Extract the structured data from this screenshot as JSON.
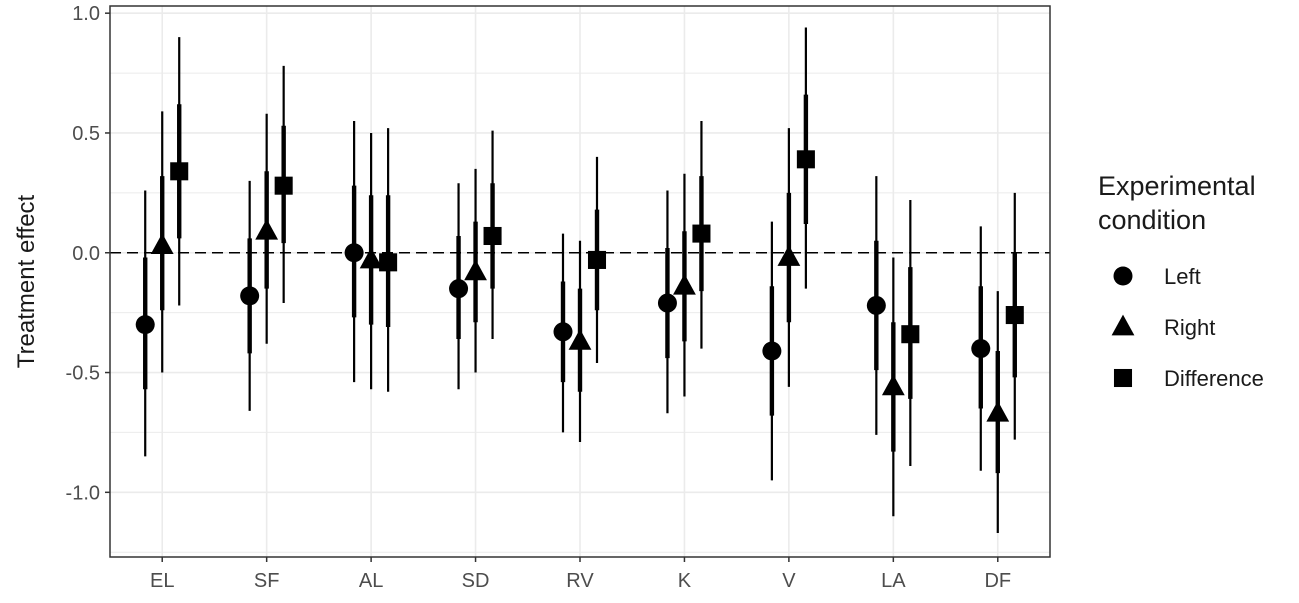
{
  "chart_data": {
    "type": "pointrange",
    "ylabel": "Treatment effect",
    "ylim": [
      -1.27,
      1.03
    ],
    "y_ticks": [
      1.0,
      0.5,
      0.0,
      -0.5,
      -1.0
    ],
    "y_tick_labels": [
      "1.0",
      "0.5",
      "0.0",
      "-0.5",
      "-1.0"
    ],
    "reference_line": 0,
    "grid": true,
    "categories": [
      "EL",
      "SF",
      "AL",
      "SD",
      "RV",
      "K",
      "V",
      "LA",
      "DF"
    ],
    "legend": {
      "title_lines": [
        "Experimental",
        "condition"
      ],
      "position": "right"
    },
    "series": [
      {
        "name": "Left",
        "shape": "circle",
        "values": [
          {
            "est": -0.3,
            "lo90": -0.57,
            "hi90": -0.02,
            "lo95": -0.85,
            "hi95": 0.26
          },
          {
            "est": -0.18,
            "lo90": -0.42,
            "hi90": 0.06,
            "lo95": -0.66,
            "hi95": 0.3
          },
          {
            "est": 0.0,
            "lo90": -0.27,
            "hi90": 0.28,
            "lo95": -0.54,
            "hi95": 0.55
          },
          {
            "est": -0.15,
            "lo90": -0.36,
            "hi90": 0.07,
            "lo95": -0.57,
            "hi95": 0.29
          },
          {
            "est": -0.33,
            "lo90": -0.54,
            "hi90": -0.12,
            "lo95": -0.75,
            "hi95": 0.08
          },
          {
            "est": -0.21,
            "lo90": -0.44,
            "hi90": 0.02,
            "lo95": -0.67,
            "hi95": 0.26
          },
          {
            "est": -0.41,
            "lo90": -0.68,
            "hi90": -0.14,
            "lo95": -0.95,
            "hi95": 0.13
          },
          {
            "est": -0.22,
            "lo90": -0.49,
            "hi90": 0.05,
            "lo95": -0.76,
            "hi95": 0.32
          },
          {
            "est": -0.4,
            "lo90": -0.65,
            "hi90": -0.14,
            "lo95": -0.91,
            "hi95": 0.11
          }
        ]
      },
      {
        "name": "Right",
        "shape": "triangle",
        "values": [
          {
            "est": 0.03,
            "lo90": -0.24,
            "hi90": 0.32,
            "lo95": -0.5,
            "hi95": 0.59
          },
          {
            "est": 0.09,
            "lo90": -0.15,
            "hi90": 0.34,
            "lo95": -0.38,
            "hi95": 0.58
          },
          {
            "est": -0.03,
            "lo90": -0.3,
            "hi90": 0.24,
            "lo95": -0.57,
            "hi95": 0.5
          },
          {
            "est": -0.08,
            "lo90": -0.29,
            "hi90": 0.13,
            "lo95": -0.5,
            "hi95": 0.35
          },
          {
            "est": -0.37,
            "lo90": -0.58,
            "hi90": -0.15,
            "lo95": -0.79,
            "hi95": 0.05
          },
          {
            "est": -0.14,
            "lo90": -0.37,
            "hi90": 0.09,
            "lo95": -0.6,
            "hi95": 0.33
          },
          {
            "est": -0.02,
            "lo90": -0.29,
            "hi90": 0.25,
            "lo95": -0.56,
            "hi95": 0.52
          },
          {
            "est": -0.56,
            "lo90": -0.83,
            "hi90": -0.29,
            "lo95": -1.1,
            "hi95": -0.02
          },
          {
            "est": -0.67,
            "lo90": -0.92,
            "hi90": -0.41,
            "lo95": -1.17,
            "hi95": -0.16
          }
        ]
      },
      {
        "name": "Difference",
        "shape": "square",
        "values": [
          {
            "est": 0.34,
            "lo90": 0.06,
            "hi90": 0.62,
            "lo95": -0.22,
            "hi95": 0.9
          },
          {
            "est": 0.28,
            "lo90": 0.04,
            "hi90": 0.53,
            "lo95": -0.21,
            "hi95": 0.78
          },
          {
            "est": -0.04,
            "lo90": -0.31,
            "hi90": 0.24,
            "lo95": -0.58,
            "hi95": 0.52
          },
          {
            "est": 0.07,
            "lo90": -0.15,
            "hi90": 0.29,
            "lo95": -0.36,
            "hi95": 0.51
          },
          {
            "est": -0.03,
            "lo90": -0.24,
            "hi90": 0.18,
            "lo95": -0.46,
            "hi95": 0.4
          },
          {
            "est": 0.08,
            "lo90": -0.16,
            "hi90": 0.32,
            "lo95": -0.4,
            "hi95": 0.55
          },
          {
            "est": 0.39,
            "lo90": 0.12,
            "hi90": 0.66,
            "lo95": -0.15,
            "hi95": 0.94
          },
          {
            "est": -0.34,
            "lo90": -0.61,
            "hi90": -0.06,
            "lo95": -0.89,
            "hi95": 0.22
          },
          {
            "est": -0.26,
            "lo90": -0.52,
            "hi90": 0.0,
            "lo95": -0.78,
            "hi95": 0.25
          }
        ]
      }
    ]
  },
  "colors": {
    "ink": "#000000",
    "grid": "#ebebeb",
    "panel_border": "#333333",
    "tick_text": "#4d4d4d",
    "title_text": "#1a1a1a"
  }
}
